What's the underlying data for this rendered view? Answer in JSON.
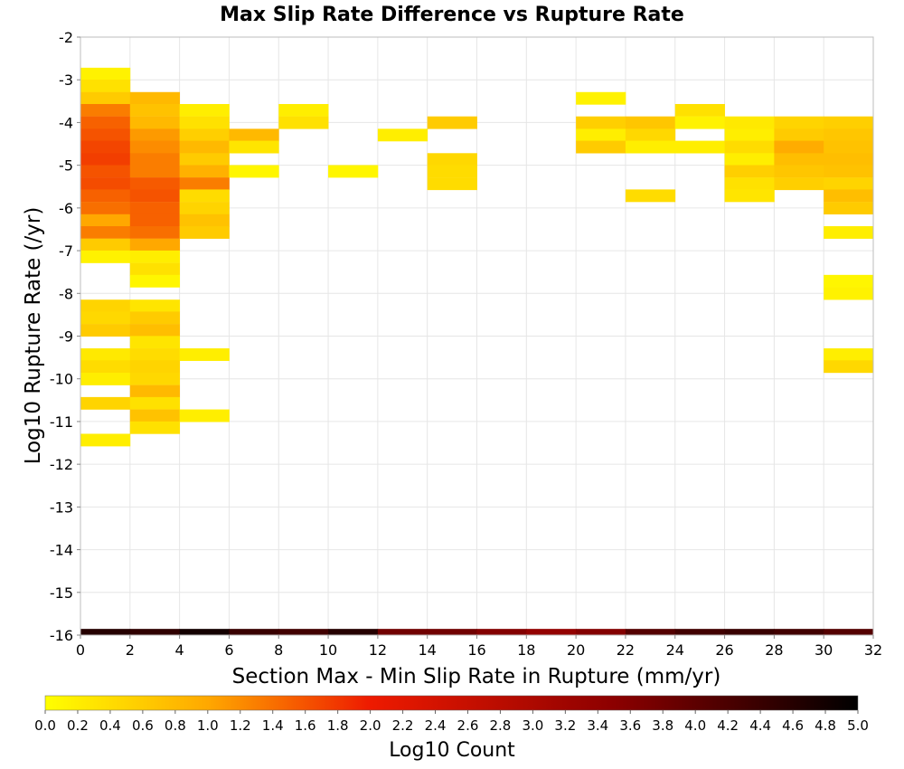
{
  "chart_data": {
    "type": "heatmap",
    "title": "Max Slip Rate Difference vs Rupture Rate",
    "xlabel": "Section Max - Min Slip Rate in Rupture (mm/yr)",
    "ylabel": "Log10 Rupture Rate (/yr)",
    "xlim": [
      0,
      32
    ],
    "ylim": [
      -16,
      -2
    ],
    "x_ticks": [
      "0",
      "2",
      "4",
      "6",
      "8",
      "10",
      "12",
      "14",
      "16",
      "18",
      "20",
      "22",
      "24",
      "26",
      "28",
      "30",
      "32"
    ],
    "y_ticks": [
      "-16",
      "-15",
      "-14",
      "-13",
      "-12",
      "-11",
      "-10",
      "-9",
      "-8",
      "-7",
      "-6",
      "-5",
      "-4",
      "-3",
      "-2"
    ],
    "x_bin_width": 2,
    "y_bin_height": 0.286,
    "grid": true,
    "colorbar": {
      "label": "Log10 Count",
      "range": [
        0,
        5
      ],
      "ticks": [
        "0.0",
        "0.2",
        "0.4",
        "0.6",
        "0.8",
        "1.0",
        "1.2",
        "1.4",
        "1.6",
        "1.8",
        "2.0",
        "2.2",
        "2.4",
        "2.6",
        "2.8",
        "3.0",
        "3.2",
        "3.4",
        "3.6",
        "3.8",
        "4.0",
        "4.2",
        "4.4",
        "4.6",
        "4.8",
        "5.0"
      ],
      "position": "bottom"
    },
    "cells": [
      {
        "x": 1,
        "y": -2.86,
        "v": 0.15
      },
      {
        "x": 1,
        "y": -3.14,
        "v": 0.35
      },
      {
        "x": 1,
        "y": -3.43,
        "v": 0.6
      },
      {
        "x": 1,
        "y": -3.71,
        "v": 1.3
      },
      {
        "x": 1,
        "y": -4.0,
        "v": 1.5
      },
      {
        "x": 1,
        "y": -4.29,
        "v": 1.6
      },
      {
        "x": 1,
        "y": -4.57,
        "v": 1.7
      },
      {
        "x": 1,
        "y": -4.86,
        "v": 1.75
      },
      {
        "x": 1,
        "y": -5.14,
        "v": 1.6
      },
      {
        "x": 1,
        "y": -5.43,
        "v": 1.65
      },
      {
        "x": 1,
        "y": -5.71,
        "v": 1.5
      },
      {
        "x": 1,
        "y": -6.0,
        "v": 1.4
      },
      {
        "x": 1,
        "y": -6.29,
        "v": 1.0
      },
      {
        "x": 1,
        "y": -6.57,
        "v": 1.3
      },
      {
        "x": 1,
        "y": -6.86,
        "v": 0.6
      },
      {
        "x": 1,
        "y": -7.14,
        "v": 0.15
      },
      {
        "x": 1,
        "y": -8.29,
        "v": 0.5
      },
      {
        "x": 1,
        "y": -8.57,
        "v": 0.45
      },
      {
        "x": 1,
        "y": -8.86,
        "v": 0.6
      },
      {
        "x": 1,
        "y": -9.43,
        "v": 0.25
      },
      {
        "x": 1,
        "y": -9.71,
        "v": 0.4
      },
      {
        "x": 1,
        "y": -10.0,
        "v": 0.2
      },
      {
        "x": 1,
        "y": -10.57,
        "v": 0.5
      },
      {
        "x": 1,
        "y": -11.43,
        "v": 0.2
      },
      {
        "x": 3,
        "y": -3.43,
        "v": 0.8
      },
      {
        "x": 3,
        "y": -3.71,
        "v": 0.7
      },
      {
        "x": 3,
        "y": -4.0,
        "v": 0.8
      },
      {
        "x": 3,
        "y": -4.29,
        "v": 1.1
      },
      {
        "x": 3,
        "y": -4.57,
        "v": 1.2
      },
      {
        "x": 3,
        "y": -4.86,
        "v": 1.3
      },
      {
        "x": 3,
        "y": -5.14,
        "v": 1.3
      },
      {
        "x": 3,
        "y": -5.43,
        "v": 1.55
      },
      {
        "x": 3,
        "y": -5.71,
        "v": 1.6
      },
      {
        "x": 3,
        "y": -6.0,
        "v": 1.5
      },
      {
        "x": 3,
        "y": -6.29,
        "v": 1.5
      },
      {
        "x": 3,
        "y": -6.57,
        "v": 1.4
      },
      {
        "x": 3,
        "y": -6.86,
        "v": 1.0
      },
      {
        "x": 3,
        "y": -7.14,
        "v": 0.2
      },
      {
        "x": 3,
        "y": -7.43,
        "v": 0.35
      },
      {
        "x": 3,
        "y": -7.71,
        "v": 0.1
      },
      {
        "x": 3,
        "y": -8.29,
        "v": 0.3
      },
      {
        "x": 3,
        "y": -8.57,
        "v": 0.6
      },
      {
        "x": 3,
        "y": -8.86,
        "v": 0.75
      },
      {
        "x": 3,
        "y": -9.14,
        "v": 0.3
      },
      {
        "x": 3,
        "y": -9.43,
        "v": 0.4
      },
      {
        "x": 3,
        "y": -9.71,
        "v": 0.5
      },
      {
        "x": 3,
        "y": -10.0,
        "v": 0.45
      },
      {
        "x": 3,
        "y": -10.29,
        "v": 0.8
      },
      {
        "x": 3,
        "y": -10.57,
        "v": 0.35
      },
      {
        "x": 3,
        "y": -10.86,
        "v": 0.7
      },
      {
        "x": 3,
        "y": -11.14,
        "v": 0.35
      },
      {
        "x": 5,
        "y": -3.71,
        "v": 0.2
      },
      {
        "x": 5,
        "y": -4.0,
        "v": 0.35
      },
      {
        "x": 5,
        "y": -4.29,
        "v": 0.55
      },
      {
        "x": 5,
        "y": -4.57,
        "v": 0.8
      },
      {
        "x": 5,
        "y": -4.86,
        "v": 0.6
      },
      {
        "x": 5,
        "y": -5.14,
        "v": 0.9
      },
      {
        "x": 5,
        "y": -5.43,
        "v": 1.3
      },
      {
        "x": 5,
        "y": -5.71,
        "v": 0.4
      },
      {
        "x": 5,
        "y": -6.0,
        "v": 0.5
      },
      {
        "x": 5,
        "y": -6.29,
        "v": 0.7
      },
      {
        "x": 5,
        "y": -6.57,
        "v": 0.6
      },
      {
        "x": 5,
        "y": -9.43,
        "v": 0.2
      },
      {
        "x": 5,
        "y": -10.86,
        "v": 0.2
      },
      {
        "x": 7,
        "y": -4.29,
        "v": 0.8
      },
      {
        "x": 7,
        "y": -4.57,
        "v": 0.3
      },
      {
        "x": 7,
        "y": -5.14,
        "v": 0.1
      },
      {
        "x": 9,
        "y": -3.71,
        "v": 0.2
      },
      {
        "x": 9,
        "y": -4.0,
        "v": 0.35
      },
      {
        "x": 11,
        "y": -5.14,
        "v": 0.1
      },
      {
        "x": 13,
        "y": -4.29,
        "v": 0.2
      },
      {
        "x": 15,
        "y": -4.0,
        "v": 0.6
      },
      {
        "x": 15,
        "y": -4.86,
        "v": 0.45
      },
      {
        "x": 15,
        "y": -5.14,
        "v": 0.4
      },
      {
        "x": 15,
        "y": -5.43,
        "v": 0.4
      },
      {
        "x": 21,
        "y": -3.43,
        "v": 0.15
      },
      {
        "x": 21,
        "y": -4.0,
        "v": 0.55
      },
      {
        "x": 21,
        "y": -4.29,
        "v": 0.2
      },
      {
        "x": 21,
        "y": -4.57,
        "v": 0.6
      },
      {
        "x": 23,
        "y": -4.0,
        "v": 0.65
      },
      {
        "x": 23,
        "y": -4.29,
        "v": 0.45
      },
      {
        "x": 23,
        "y": -4.57,
        "v": 0.2
      },
      {
        "x": 23,
        "y": -5.71,
        "v": 0.4
      },
      {
        "x": 25,
        "y": -3.71,
        "v": 0.35
      },
      {
        "x": 25,
        "y": -4.0,
        "v": 0.15
      },
      {
        "x": 25,
        "y": -4.57,
        "v": 0.2
      },
      {
        "x": 27,
        "y": -4.0,
        "v": 0.25
      },
      {
        "x": 27,
        "y": -4.29,
        "v": 0.2
      },
      {
        "x": 27,
        "y": -4.57,
        "v": 0.4
      },
      {
        "x": 27,
        "y": -4.86,
        "v": 0.2
      },
      {
        "x": 27,
        "y": -5.14,
        "v": 0.55
      },
      {
        "x": 27,
        "y": -5.43,
        "v": 0.35
      },
      {
        "x": 27,
        "y": -5.71,
        "v": 0.3
      },
      {
        "x": 29,
        "y": -4.0,
        "v": 0.5
      },
      {
        "x": 29,
        "y": -4.29,
        "v": 0.6
      },
      {
        "x": 29,
        "y": -4.57,
        "v": 0.95
      },
      {
        "x": 29,
        "y": -4.86,
        "v": 0.75
      },
      {
        "x": 29,
        "y": -5.14,
        "v": 0.65
      },
      {
        "x": 29,
        "y": -5.43,
        "v": 0.55
      },
      {
        "x": 31,
        "y": -4.0,
        "v": 0.55
      },
      {
        "x": 31,
        "y": -4.29,
        "v": 0.65
      },
      {
        "x": 31,
        "y": -4.57,
        "v": 0.7
      },
      {
        "x": 31,
        "y": -4.86,
        "v": 0.75
      },
      {
        "x": 31,
        "y": -5.14,
        "v": 0.7
      },
      {
        "x": 31,
        "y": -5.43,
        "v": 0.5
      },
      {
        "x": 31,
        "y": -5.71,
        "v": 0.75
      },
      {
        "x": 31,
        "y": -6.0,
        "v": 0.6
      },
      {
        "x": 31,
        "y": -6.57,
        "v": 0.2
      },
      {
        "x": 31,
        "y": -7.71,
        "v": 0.1
      },
      {
        "x": 31,
        "y": -8.0,
        "v": 0.15
      },
      {
        "x": 31,
        "y": -9.43,
        "v": 0.2
      },
      {
        "x": 31,
        "y": -9.71,
        "v": 0.45
      }
    ],
    "bottom_row": {
      "y": -15.93,
      "values": [
        4.6,
        4.5,
        4.8,
        4.4,
        4.3,
        4.6,
        3.8,
        3.8,
        3.6,
        3.4,
        3.6,
        4.1,
        4.3,
        4.4,
        4.3,
        4.1
      ]
    }
  }
}
